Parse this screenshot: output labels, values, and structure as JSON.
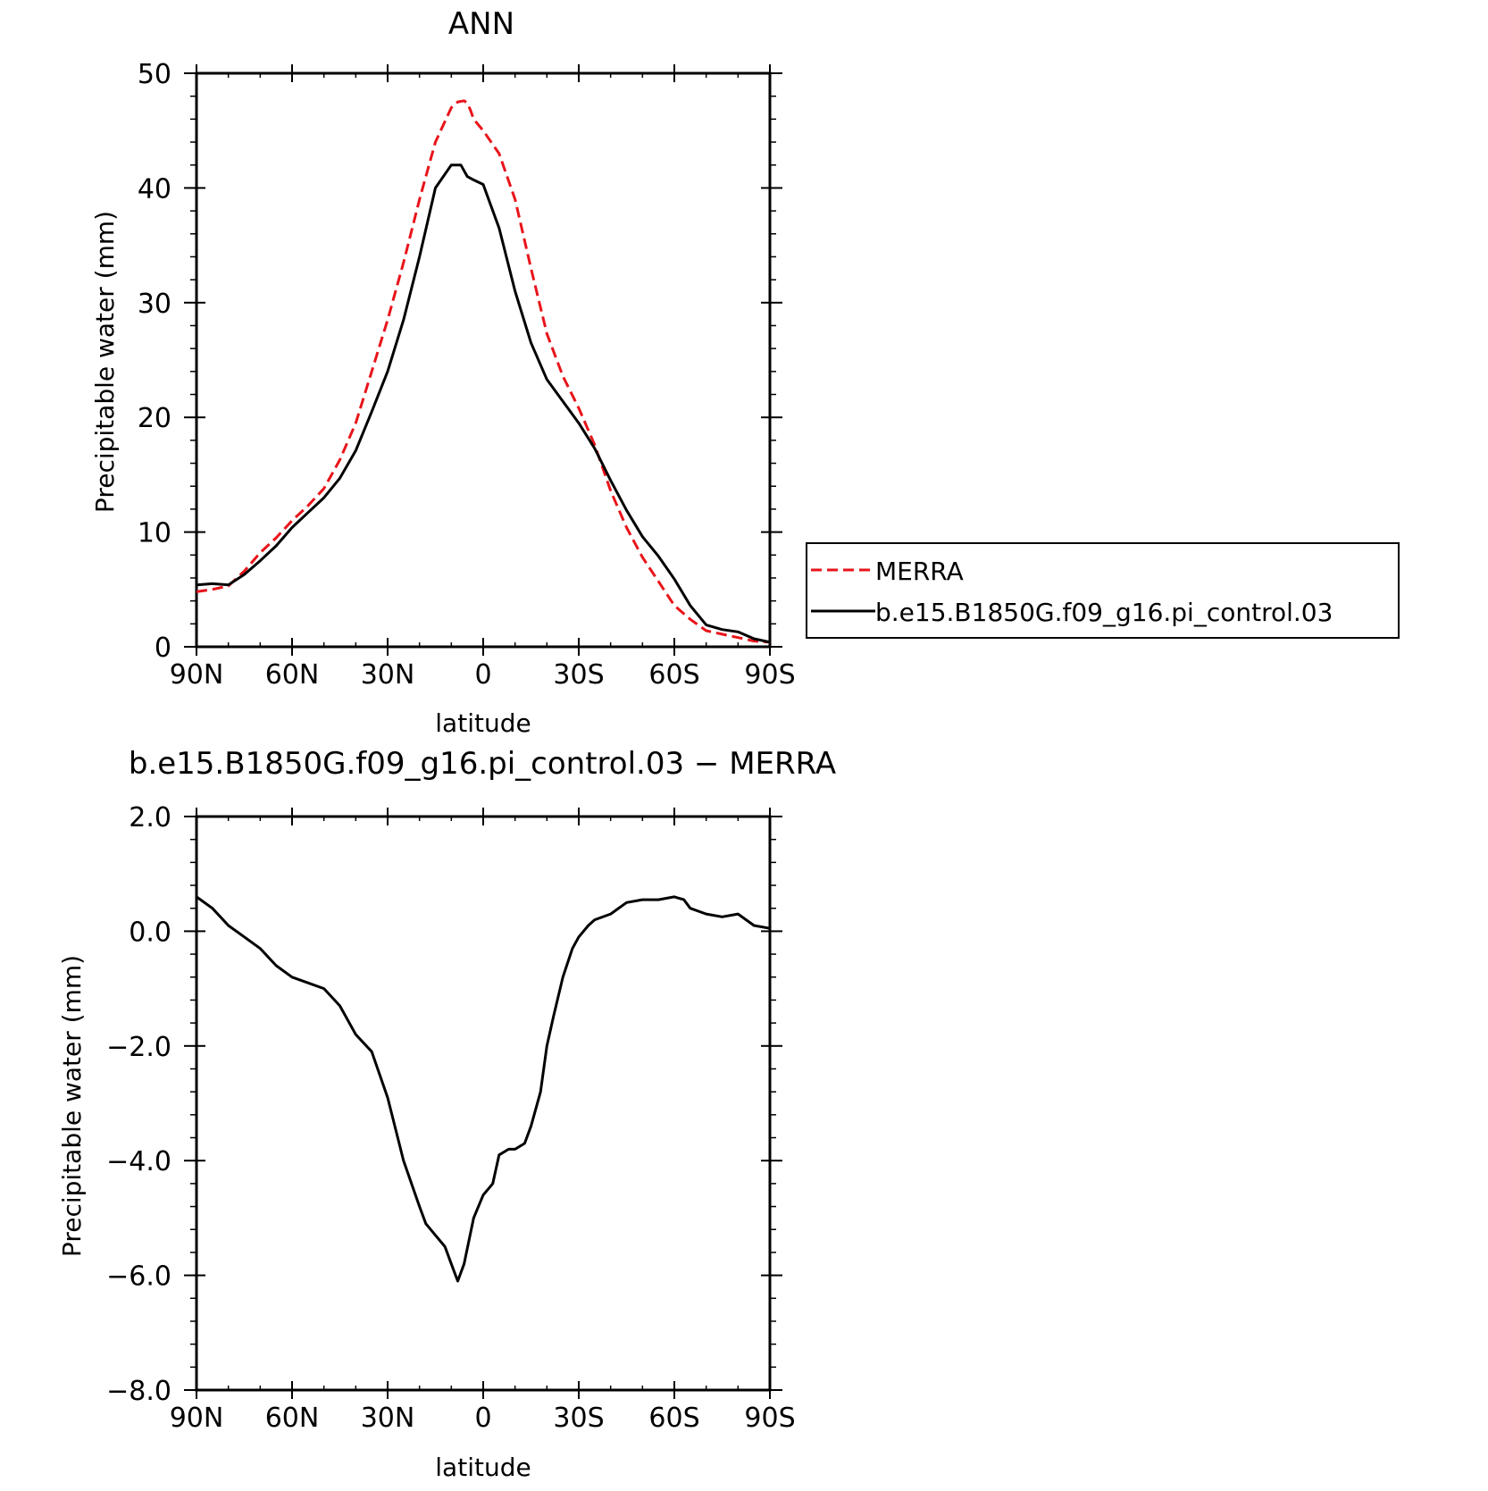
{
  "chart_data": [
    {
      "type": "line",
      "title": "ANN",
      "xlabel": "latitude",
      "ylabel": "Precipitable water (mm)",
      "xlim": [
        90,
        -90
      ],
      "ylim": [
        0,
        50
      ],
      "x_tick_values": [
        90,
        60,
        30,
        0,
        -30,
        -60,
        -90
      ],
      "x_tick_labels": [
        "90N",
        "60N",
        "30N",
        "0",
        "30S",
        "60S",
        "90S"
      ],
      "y_tick_values": [
        0,
        10,
        20,
        30,
        40,
        50
      ],
      "y_tick_labels": [
        "0",
        "10",
        "20",
        "30",
        "40",
        "50"
      ],
      "legend_position": "right",
      "series": [
        {
          "name": "MERRA",
          "color": "#e8141a",
          "dash": "dashed",
          "x": [
            90,
            85,
            80,
            75,
            70,
            65,
            60,
            55,
            50,
            45,
            40,
            35,
            30,
            25,
            20,
            15,
            10,
            8,
            6,
            5,
            4,
            3,
            0,
            -5,
            -10,
            -15,
            -20,
            -25,
            -30,
            -35,
            -40,
            -45,
            -50,
            -55,
            -60,
            -65,
            -70,
            -75,
            -80,
            -85,
            -90
          ],
          "y": [
            4.8,
            5.0,
            5.3,
            6.6,
            8.2,
            9.5,
            11.0,
            12.3,
            13.8,
            16.3,
            19.5,
            24.0,
            28.5,
            33.5,
            39.0,
            44.0,
            47.0,
            47.5,
            47.6,
            47.4,
            46.8,
            46.0,
            45.0,
            43.0,
            39.0,
            33.0,
            27.3,
            23.6,
            20.8,
            17.6,
            13.6,
            10.4,
            7.8,
            5.7,
            3.6,
            2.4,
            1.4,
            1.1,
            0.8,
            0.5,
            0.4
          ]
        },
        {
          "name": "b.e15.B1850G.f09_g16.pi_control.03",
          "color": "#000000",
          "dash": "solid",
          "x": [
            90,
            85,
            80,
            75,
            70,
            65,
            60,
            55,
            50,
            45,
            40,
            35,
            30,
            25,
            20,
            15,
            10,
            7,
            5,
            3,
            0,
            -5,
            -10,
            -15,
            -20,
            -25,
            -30,
            -35,
            -40,
            -45,
            -50,
            -55,
            -60,
            -65,
            -70,
            -75,
            -80,
            -85,
            -90
          ],
          "y": [
            5.4,
            5.5,
            5.4,
            6.3,
            7.5,
            8.8,
            10.4,
            11.7,
            13.0,
            14.7,
            17.1,
            20.5,
            24.0,
            28.5,
            34.0,
            40.0,
            42.0,
            42.0,
            41.0,
            40.7,
            40.3,
            36.5,
            31.0,
            26.5,
            23.3,
            21.4,
            19.5,
            17.3,
            14.5,
            11.9,
            9.6,
            7.9,
            5.9,
            3.6,
            1.9,
            1.5,
            1.3,
            0.7,
            0.4
          ]
        }
      ]
    },
    {
      "type": "line",
      "title": "b.e15.B1850G.f09_g16.pi_control.03 − MERRA",
      "xlabel": "latitude",
      "ylabel": "Precipitable water (mm)",
      "xlim": [
        90,
        -90
      ],
      "ylim": [
        -8.0,
        2.0
      ],
      "x_tick_values": [
        90,
        60,
        30,
        0,
        -30,
        -60,
        -90
      ],
      "x_tick_labels": [
        "90N",
        "60N",
        "30N",
        "0",
        "30S",
        "60S",
        "90S"
      ],
      "y_tick_values": [
        2.0,
        0.0,
        -2.0,
        -4.0,
        -6.0,
        -8.0
      ],
      "y_tick_labels": [
        "2.0",
        "0.0",
        "−2.0",
        "−4.0",
        "−6.0",
        "−8.0"
      ],
      "series": [
        {
          "color": "#000000",
          "dash": "solid",
          "x": [
            90,
            85,
            80,
            75,
            70,
            65,
            60,
            55,
            50,
            45,
            40,
            35,
            30,
            25,
            20,
            18,
            15,
            12,
            10,
            8,
            6,
            3,
            0,
            -3,
            -5,
            -8,
            -10,
            -13,
            -15,
            -18,
            -20,
            -22,
            -25,
            -28,
            -30,
            -33,
            -35,
            -40,
            -45,
            -50,
            -55,
            -60,
            -63,
            -65,
            -70,
            -75,
            -80,
            -85,
            -90
          ],
          "y": [
            0.6,
            0.4,
            0.1,
            -0.1,
            -0.3,
            -0.6,
            -0.8,
            -0.9,
            -1.0,
            -1.3,
            -1.8,
            -2.1,
            -2.9,
            -4.0,
            -4.8,
            -5.1,
            -5.3,
            -5.5,
            -5.8,
            -6.1,
            -5.8,
            -5.0,
            -4.6,
            -4.4,
            -3.9,
            -3.8,
            -3.8,
            -3.7,
            -3.4,
            -2.8,
            -2.0,
            -1.5,
            -0.8,
            -0.3,
            -0.1,
            0.1,
            0.2,
            0.3,
            0.5,
            0.55,
            0.55,
            0.6,
            0.55,
            0.4,
            0.3,
            0.25,
            0.3,
            0.1,
            0.05
          ]
        }
      ]
    }
  ]
}
